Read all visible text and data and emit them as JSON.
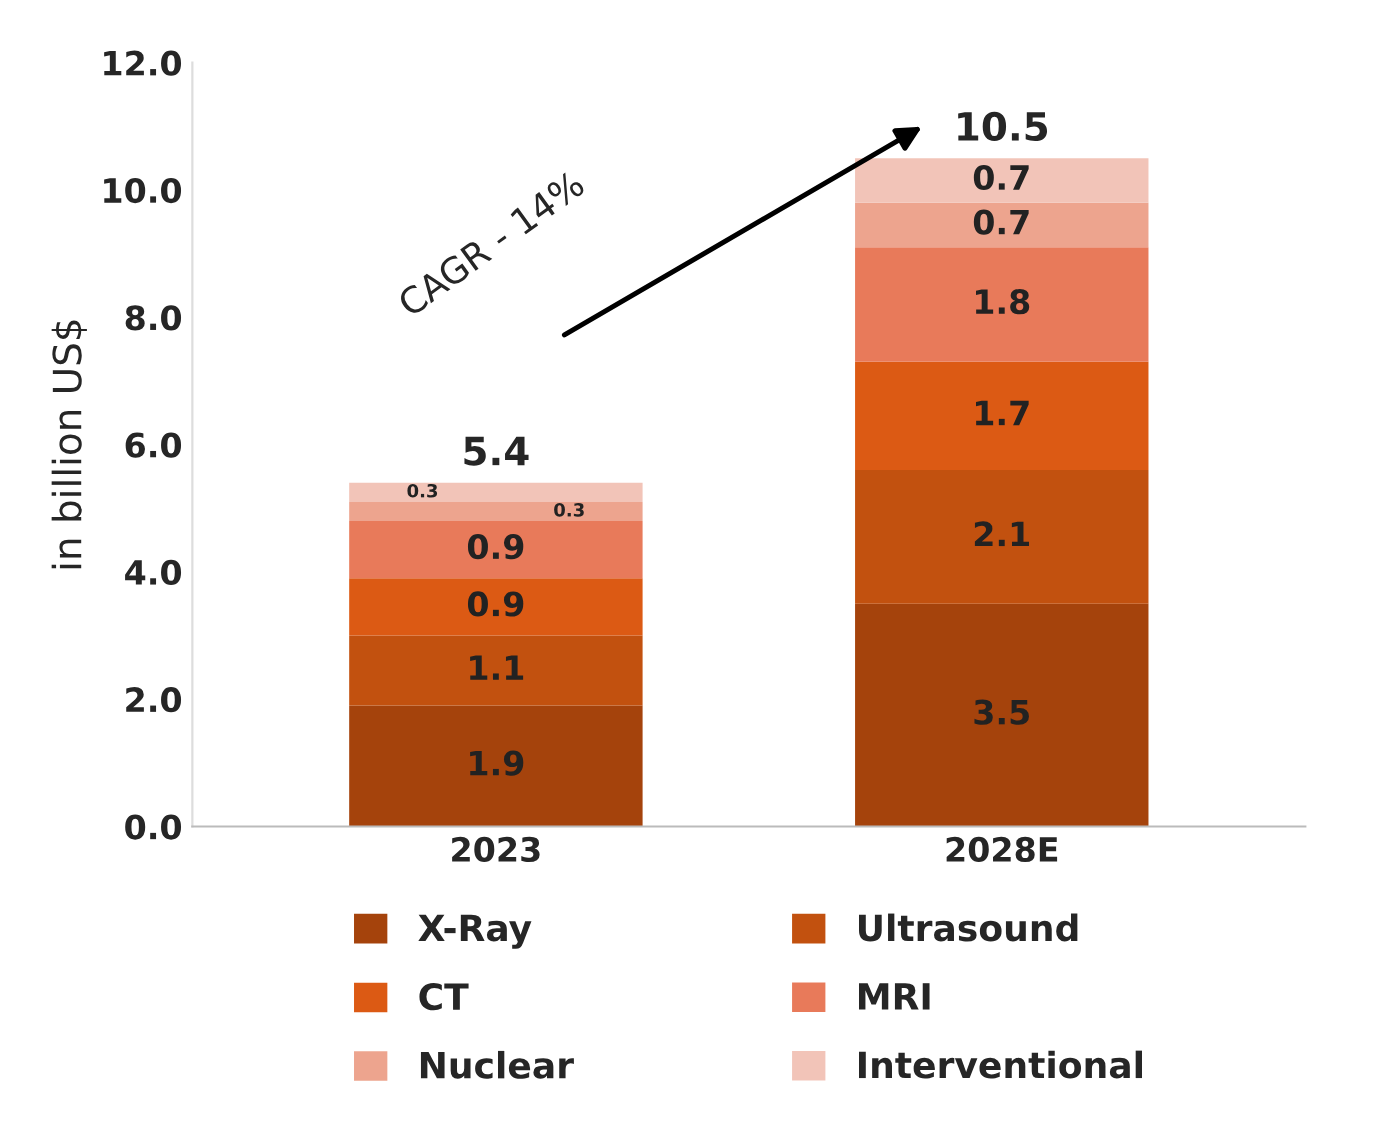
{
  "chart_data": {
    "type": "bar",
    "stacked": true,
    "ylabel": "in billion US$",
    "categories": [
      "2023",
      "2028E"
    ],
    "series": [
      {
        "name": "X-Ray",
        "color": "#a5430c",
        "values": [
          1.9,
          3.5
        ]
      },
      {
        "name": "Ultrasound",
        "color": "#c2510f",
        "values": [
          1.1,
          2.1
        ]
      },
      {
        "name": "CT",
        "color": "#dc5a14",
        "values": [
          0.9,
          1.7
        ]
      },
      {
        "name": "MRI",
        "color": "#e87a5a",
        "values": [
          0.9,
          1.8
        ]
      },
      {
        "name": "Nuclear",
        "color": "#eda48e",
        "values": [
          0.3,
          0.7
        ]
      },
      {
        "name": "Interventional",
        "color": "#f2c4b8",
        "values": [
          0.3,
          0.7
        ]
      }
    ],
    "totals": [
      "5.4",
      "10.5"
    ],
    "data_labels": true,
    "ylim": [
      0,
      12
    ],
    "yticks": [
      {
        "value": 0,
        "label": "0.0"
      },
      {
        "value": 2,
        "label": "2.0"
      },
      {
        "value": 4,
        "label": "4.0"
      },
      {
        "value": 6,
        "label": "6.0"
      },
      {
        "value": 8,
        "label": "8.0"
      },
      {
        "value": 10,
        "label": "10.0"
      },
      {
        "value": 12,
        "label": "12.0"
      }
    ],
    "annotations": [
      "CAGR - 14%"
    ],
    "legend": "bottom",
    "grid": false
  }
}
